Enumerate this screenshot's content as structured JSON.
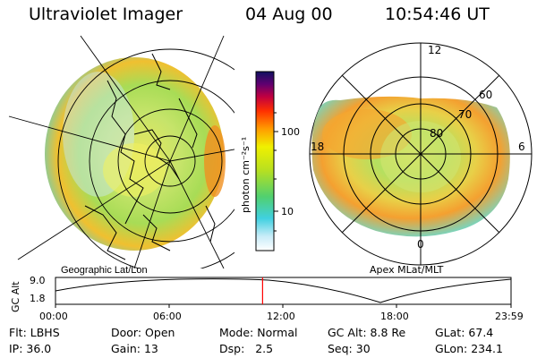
{
  "header": {
    "instrument": "Ultraviolet Imager",
    "date": "04 Aug 00",
    "time": "10:54:46 UT"
  },
  "colorbar": {
    "unit_label": "photon cm⁻²s⁻¹",
    "ticks": [
      "100",
      "10"
    ],
    "scale": "log"
  },
  "left_panel": {
    "caption": "Geographic Lat/Lon"
  },
  "right_panel": {
    "caption": "Apex MLat/MLT",
    "lat_labels": [
      "80",
      "70",
      "60"
    ],
    "mlt_labels": {
      "top": "12",
      "left": "18",
      "right": "6",
      "bottom": "0"
    }
  },
  "altitude_plot": {
    "ylabel": "GC Alt",
    "y_ticks": [
      "9.0",
      "1.8"
    ],
    "x_ticks": [
      "00:00",
      "06:00",
      "12:00",
      "18:00",
      "23:59"
    ],
    "current_time_marker_hours": 10.91,
    "marker_color": "#ff0000"
  },
  "params": {
    "flt_label": "Flt:",
    "flt_value": "LBHS",
    "ip_label": "IP:",
    "ip_value": "36.0",
    "door_label": "Door:",
    "door_value": "Open",
    "gain_label": "Gain:",
    "gain_value": "13",
    "mode_label": "Mode:",
    "mode_value": "Normal",
    "dsp_label": "Dsp:",
    "dsp_value": "2.5",
    "gcalt_label": "GC Alt:",
    "gcalt_value": "8.8 Re",
    "seq_label": "Seq:",
    "seq_value": "30",
    "glat_label": "GLat:",
    "glat_value": "67.4",
    "glon_label": "GLon:",
    "glon_value": "234.1"
  }
}
